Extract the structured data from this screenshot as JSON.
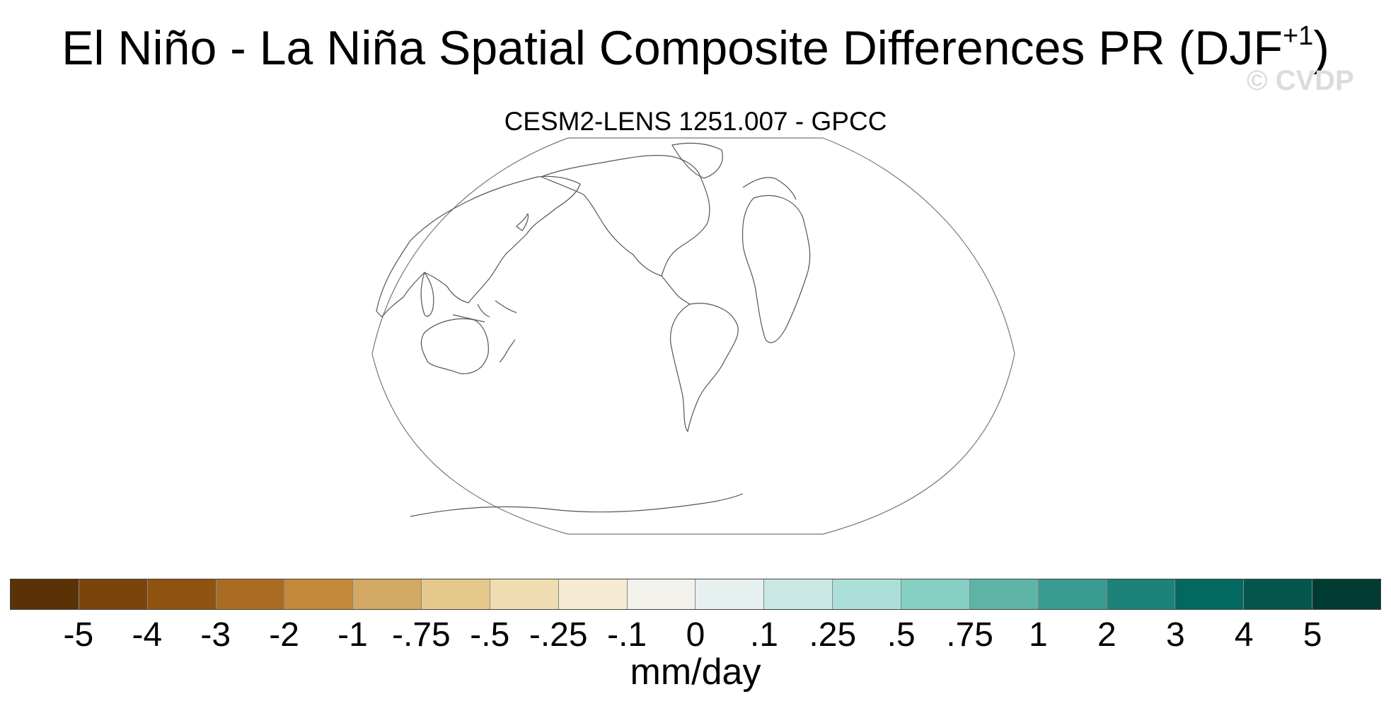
{
  "title": {
    "main": "El Niño - La Niña Spatial Composite Differences PR (DJF",
    "superscript": "+1",
    "close": ")"
  },
  "watermark": "© CVDP",
  "panel": {
    "subtitle": "CESM2-LENS 1251.007 - GPCC",
    "projection": "robinson",
    "center": "pacific",
    "coastline_color": "#555555"
  },
  "colorbar": {
    "colors": [
      "#5a3205",
      "#7a440b",
      "#8e530f",
      "#aa6c22",
      "#c48a3c",
      "#d3a862",
      "#e5c98c",
      "#efdcb0",
      "#f4ebd2",
      "#f3f1ec",
      "#e6f0ee",
      "#c9e8e3",
      "#acdfd8",
      "#86cfc3",
      "#5fb4a8",
      "#3a9b91",
      "#1d8279",
      "#026860",
      "#04564c",
      "#003c32"
    ],
    "labels": [
      "-5",
      "-4",
      "-3",
      "-2",
      "-1",
      "-.75",
      "-.5",
      "-.25",
      "-.1",
      "0",
      ".1",
      ".25",
      ".5",
      ".75",
      "1",
      "2",
      "3",
      "4",
      "5"
    ],
    "units": "mm/day"
  }
}
